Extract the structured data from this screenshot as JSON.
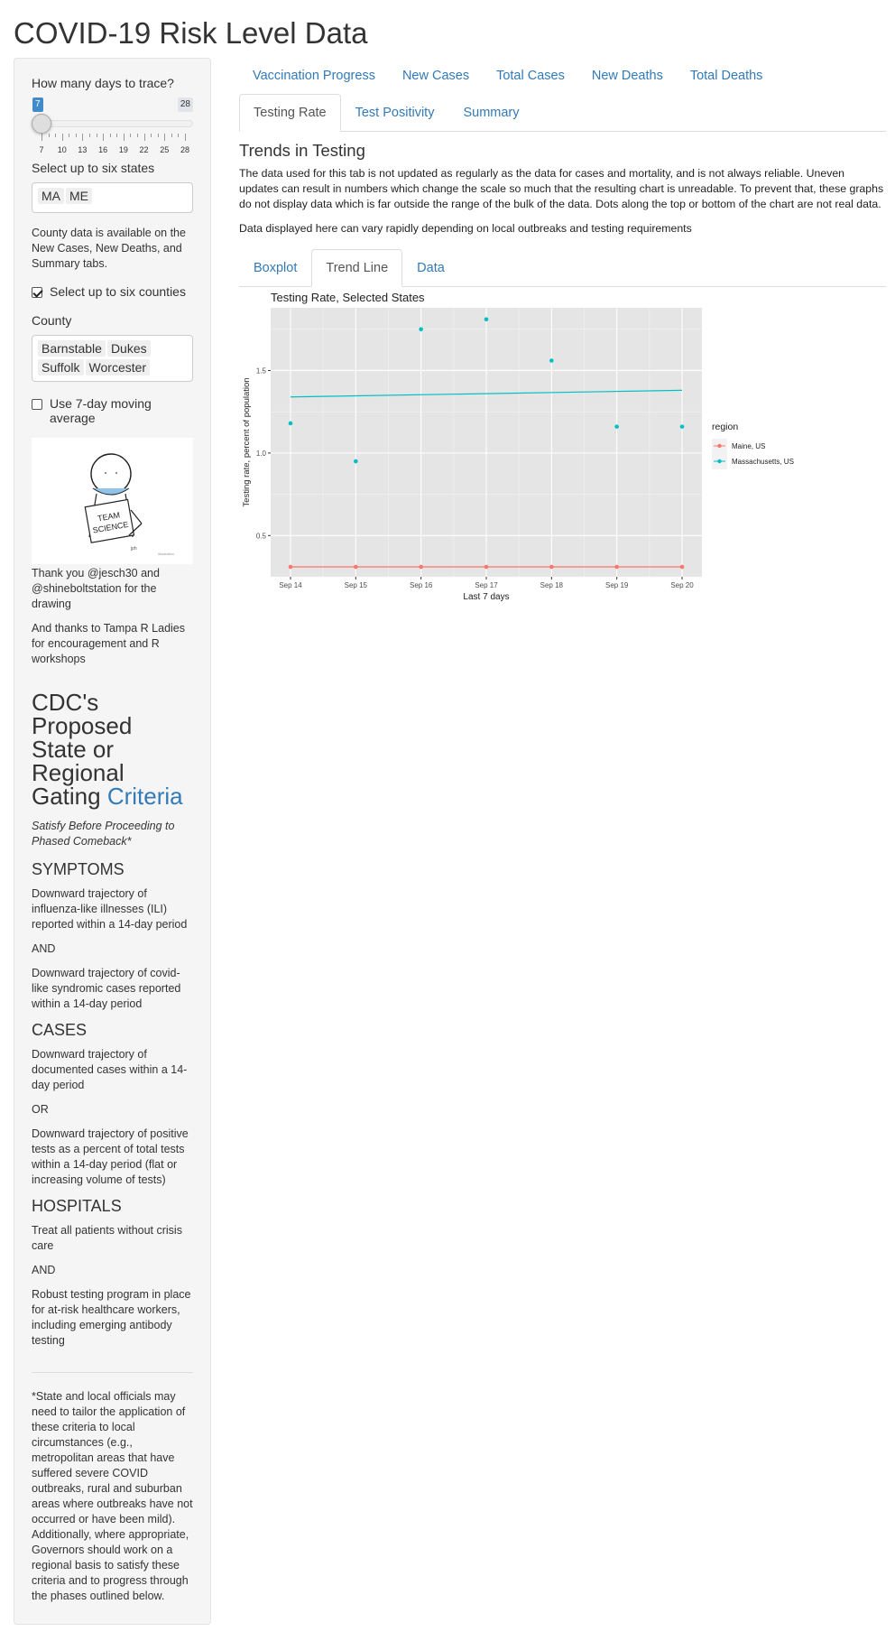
{
  "app": {
    "title": "COVID-19 Risk Level Data"
  },
  "sidebar": {
    "days_label": "How many days to trace?",
    "slider": {
      "value": "7",
      "max_label": "28",
      "ticks": [
        "7",
        "10",
        "13",
        "16",
        "19",
        "22",
        "25",
        "28"
      ]
    },
    "states_label": "Select up to six states",
    "states": [
      "MA",
      "ME"
    ],
    "county_note": "County data is available on the New Cases, New Deaths, and Summary tabs.",
    "counties_checkbox_label": "Select up to six counties",
    "counties_checked": true,
    "county_label": "County",
    "counties": [
      "Barnstable",
      "Dukes",
      "Suffolk",
      "Worcester"
    ],
    "moving_avg_label": "Use 7-day moving average",
    "moving_avg_checked": false,
    "drawing_text": "TEAM SCIENCE",
    "thanks_1": "Thank you @jesch30 and @shineboltstation for the drawing",
    "thanks_2": "And thanks to Tampa R Ladies for encouragement and R workshops",
    "cdc_title_plain": "CDC's Proposed State or Regional Gating ",
    "cdc_title_link": "Criteria",
    "cdc_subtitle": "Satisfy Before Proceeding to Phased Comeback*",
    "symptoms_heading": "SYMPTOMS",
    "symptoms_1": "Downward trajectory of influenza-like illnesses (ILI) reported within a 14-day period",
    "and_1": "AND",
    "symptoms_2": "Downward trajectory of covid-like syndromic cases reported within a 14-day period",
    "cases_heading": "CASES",
    "cases_1": "Downward trajectory of documented cases within a 14-day period",
    "or_1": "OR",
    "cases_2": "Downward trajectory of positive tests as a percent of total tests within a 14-day period (flat or increasing volume of tests)",
    "hospitals_heading": "HOSPITALS",
    "hospitals_1": "Treat all patients without crisis care",
    "and_2": "AND",
    "hospitals_2": "Robust testing program in place for at-risk healthcare workers, including emerging antibody testing",
    "footnote": "*State and local officials may need to tailor the application of these criteria to local circumstances (e.g., metropolitan areas that have suffered severe COVID outbreaks, rural and suburban areas where outbreaks have not occurred or have been mild). Additionally, where appropriate, Governors should work on a regional basis to satisfy these criteria and to progress through the phases outlined below."
  },
  "main": {
    "top_tabs": [
      "Vaccination Progress",
      "New Cases",
      "Total Cases",
      "New Deaths",
      "Total Deaths"
    ],
    "second_tabs": [
      "Testing Rate",
      "Test Positivity",
      "Summary"
    ],
    "active_second_tab": "Testing Rate",
    "section_title": "Trends in Testing",
    "para_1": "The data used for this tab is not updated as regularly as the data for cases and mortality, and is not always reliable. Uneven updates can result in numbers which change the scale so much that the resulting chart is unreadable. To prevent that, these graphs do not display data which is far outside the range of the bulk of the data. Dots along the top or bottom of the chart are not real data.",
    "para_2": "Data displayed here can vary rapidly depending on local outbreaks and testing requirements",
    "sub_tabs": [
      "Boxplot",
      "Trend Line",
      "Data"
    ],
    "active_sub_tab": "Trend Line"
  },
  "chart_data": {
    "type": "scatter",
    "title": "Testing Rate, Selected States",
    "xlabel": "Last 7 days",
    "ylabel": "Testing rate, percent of population",
    "categories": [
      "Sep 14",
      "Sep 15",
      "Sep 16",
      "Sep 17",
      "Sep 18",
      "Sep 19",
      "Sep 20"
    ],
    "ylim": [
      0.25,
      1.88
    ],
    "yticks": [
      0.5,
      1.0,
      1.5
    ],
    "ytick_labels": [
      "0.5",
      "1.0",
      "1.5"
    ],
    "legend_title": "region",
    "legend_position": "right",
    "grid": true,
    "panel_color": "#e5e5e5",
    "series": [
      {
        "name": "Maine, US",
        "color": "#F8766D",
        "values": [
          0.31,
          0.31,
          0.31,
          0.31,
          0.31,
          0.31,
          0.31
        ],
        "trend": [
          0.31,
          0.31
        ]
      },
      {
        "name": "Massachusetts, US",
        "color": "#00BFC4",
        "values": [
          1.18,
          0.95,
          1.75,
          1.81,
          1.56,
          1.16,
          1.16
        ],
        "trend": [
          1.34,
          1.38
        ]
      }
    ]
  }
}
